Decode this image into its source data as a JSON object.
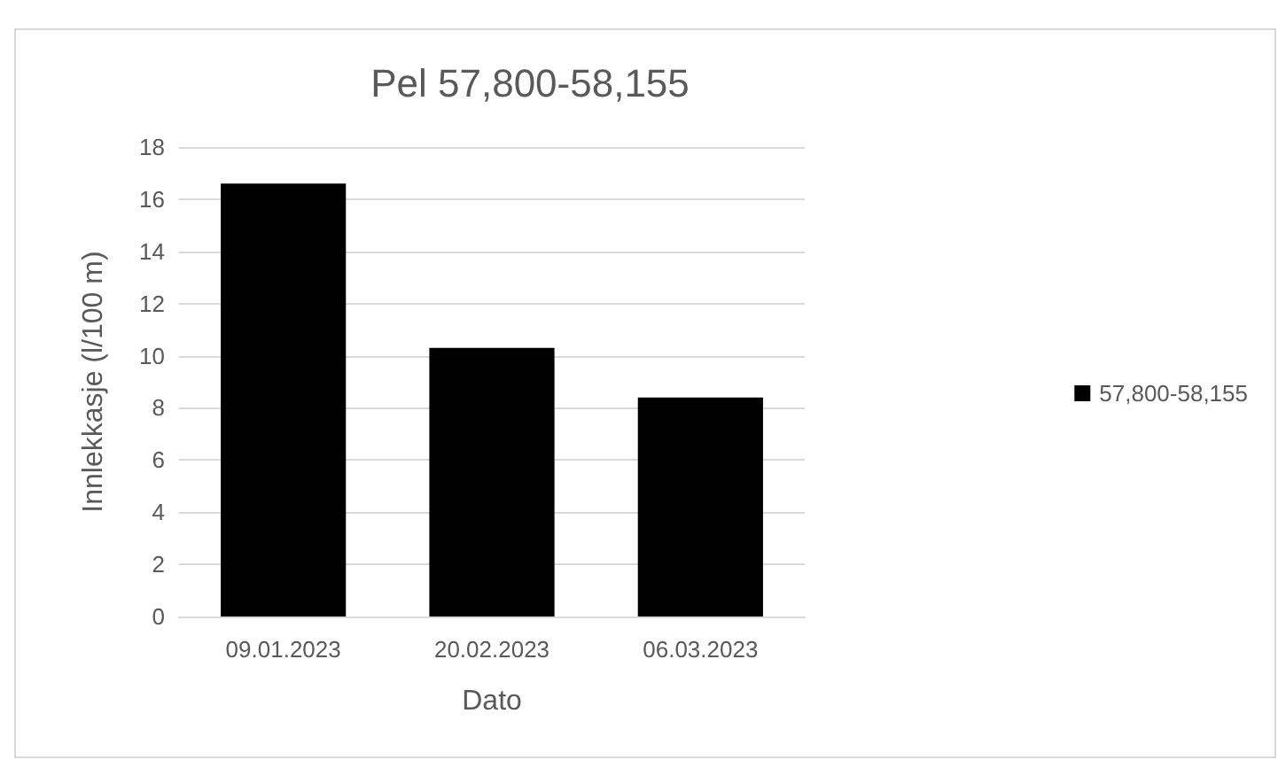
{
  "chart_data": {
    "type": "bar",
    "title": "Pel 57,800-58,155",
    "xlabel": "Dato",
    "ylabel": "Innlekkasje (l/100 m)",
    "categories": [
      "09.01.2023",
      "20.02.2023",
      "06.03.2023"
    ],
    "series": [
      {
        "name": "57,800-58,155",
        "color": "#000000",
        "values": [
          16.6,
          10.3,
          8.4
        ]
      }
    ],
    "ylim": [
      0,
      18
    ],
    "yticks": [
      0,
      2,
      4,
      6,
      8,
      10,
      12,
      14,
      16,
      18
    ],
    "grid": "y",
    "legend": "right"
  }
}
